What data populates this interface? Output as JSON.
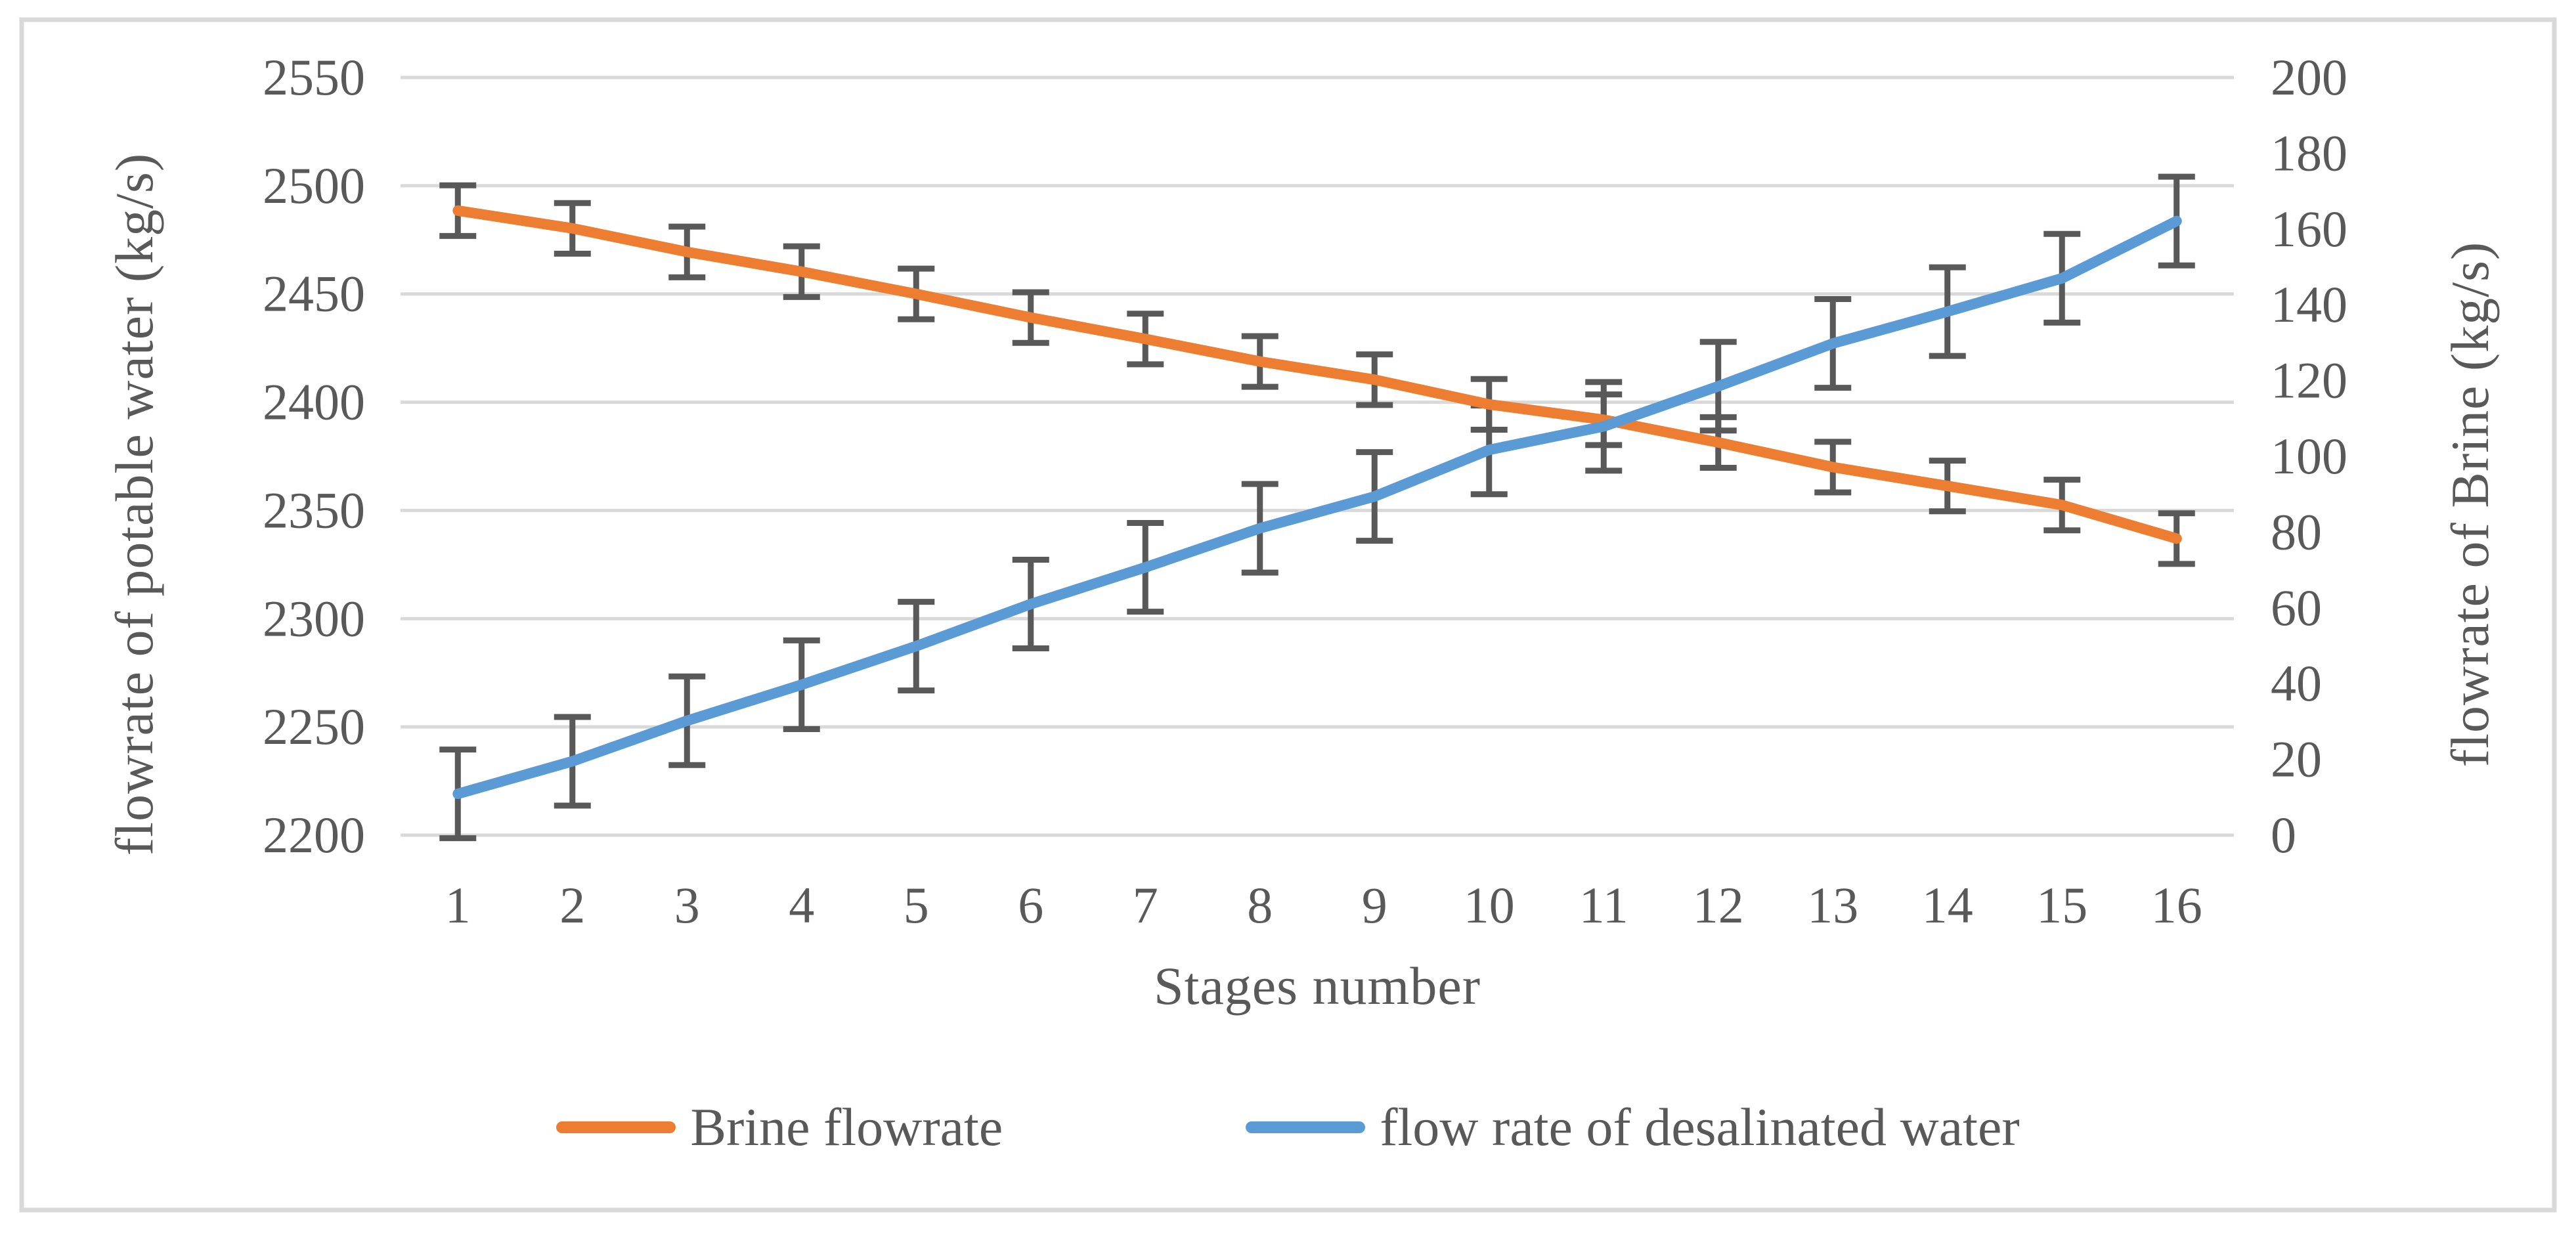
{
  "chart_data": {
    "type": "line",
    "title": "",
    "x": {
      "label": "Stages number",
      "categories": [
        "1",
        "2",
        "3",
        "4",
        "5",
        "6",
        "7",
        "8",
        "9",
        "10",
        "11",
        "12",
        "13",
        "14",
        "15",
        "16"
      ]
    },
    "y_left": {
      "label": "flowrate of potable water (kg/s)",
      "min": 2200,
      "max": 2550,
      "tick_step": 50,
      "ticks": [
        2550,
        2500,
        2450,
        2400,
        2350,
        2300,
        2250,
        2200
      ]
    },
    "y_right": {
      "label": "flowrate of Brine (kg/s)",
      "min": 0,
      "max": 200,
      "tick_step": 20,
      "ticks": [
        200,
        180,
        160,
        140,
        120,
        100,
        80,
        60,
        40,
        20,
        0
      ]
    },
    "grid": true,
    "legend_position": "bottom",
    "series": [
      {
        "name": "Brine flowrate",
        "color": "#ED7D31",
        "axis": "left",
        "values": [
          2488.5,
          2480.3,
          2469.4,
          2460.3,
          2450.0,
          2439.1,
          2429.2,
          2418.8,
          2410.4,
          2399.0,
          2391.9,
          2381.4,
          2370.0,
          2361.3,
          2352.5,
          2337.0
        ],
        "error_bar": 11.7
      },
      {
        "name": "flow rate of desalinated water",
        "color": "#5B9BD5",
        "axis": "right",
        "values": [
          10.9,
          19.5,
          30.2,
          39.7,
          49.9,
          61.0,
          70.7,
          81.0,
          89.4,
          101.7,
          107.9,
          118.5,
          129.8,
          138.2,
          147.0,
          162.1
        ],
        "error_bar": 11.7
      }
    ]
  },
  "style": {
    "grid_color": "#D9D9D9",
    "border_color": "#D9D9D9",
    "error_bar_color": "#595959",
    "text_color": "#595959",
    "background": "#FFFFFF"
  }
}
